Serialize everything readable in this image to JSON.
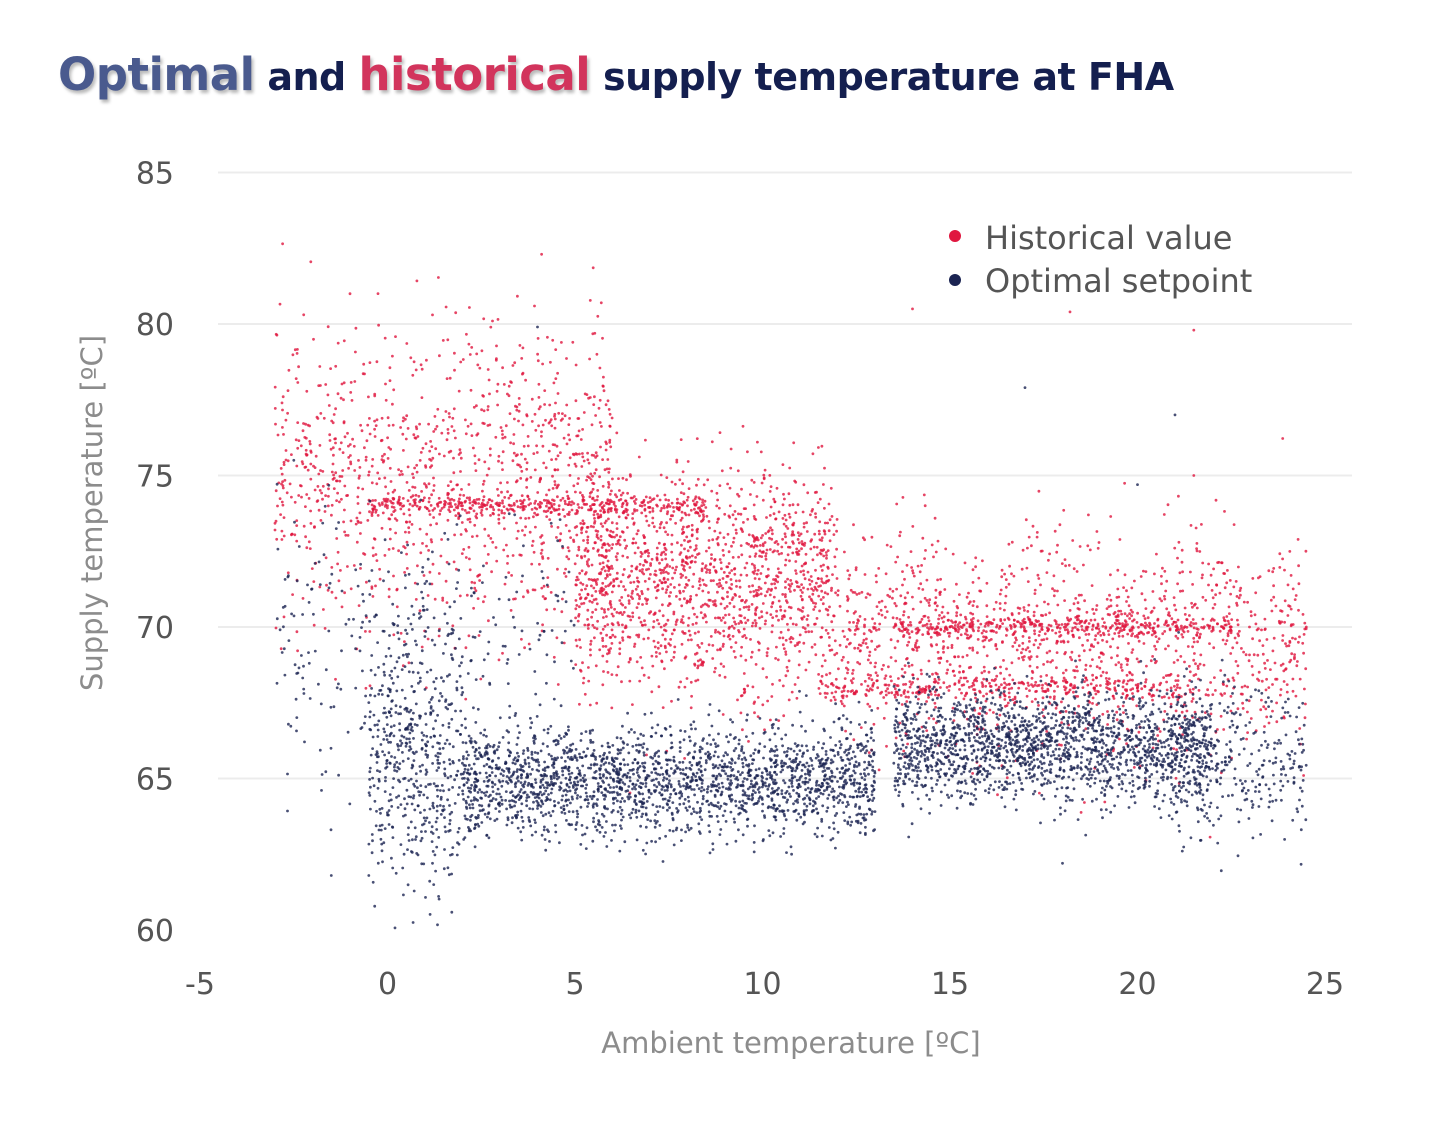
{
  "title": {
    "part1": "Optimal",
    "part2": " and ",
    "part3": "historical",
    "part4": " supply temperature at FHA"
  },
  "colors": {
    "historical": "#e0173f",
    "optimal": "#1b2452",
    "title_optimal": "#4a5a8e",
    "title_historical": "#d2345c",
    "title_text": "#141f4f"
  },
  "chart_data": {
    "type": "scatter",
    "title": "Optimal and historical supply temperature at FHA",
    "xlabel": "Ambient temperature [ºC]",
    "ylabel": "Supply temperature  [ºC]",
    "xlim": [
      -5,
      26
    ],
    "ylim": [
      60,
      85
    ],
    "x_ticks": [
      -5,
      0,
      5,
      10,
      15,
      20,
      25
    ],
    "y_ticks": [
      60,
      65,
      70,
      75,
      80,
      85
    ],
    "grid": true,
    "legend_position": "top-right",
    "series": [
      {
        "name": "Historical value",
        "color": "#e0173f",
        "point_count_approx": 9000,
        "clusters": [
          {
            "x_range": [
              -0.5,
              8.5
            ],
            "y_center": 74.0,
            "y_spread": 0.2,
            "weight": 0.08
          },
          {
            "x_range": [
              13.5,
              22.5
            ],
            "y_center": 70.0,
            "y_spread": 0.2,
            "weight": 0.08
          },
          {
            "x_range": [
              11.5,
              21.5
            ],
            "y_center": 68.0,
            "y_spread": 0.2,
            "weight": 0.06
          },
          {
            "x_range": [
              -3,
              6
            ],
            "y_center": 75.0,
            "y_spread": 2.5,
            "weight": 0.22
          },
          {
            "x_range": [
              5,
              12
            ],
            "y_center": 71.5,
            "y_spread": 1.8,
            "weight": 0.3
          },
          {
            "x_range": [
              12,
              24.5
            ],
            "y_center": 69.5,
            "y_spread": 1.8,
            "weight": 0.26
          }
        ],
        "sample_points": [
          [
            -3.0,
            73.2
          ],
          [
            -1.0,
            81.0
          ],
          [
            1.2,
            80.3
          ],
          [
            2.8,
            80.1
          ],
          [
            5.7,
            80.7
          ],
          [
            0.0,
            74.0
          ],
          [
            2.0,
            74.0
          ],
          [
            8.0,
            74.0
          ],
          [
            15.0,
            70.0
          ],
          [
            22.5,
            70.0
          ],
          [
            24.5,
            70.0
          ],
          [
            12.0,
            68.0
          ],
          [
            20.0,
            68.0
          ],
          [
            23.5,
            68.0
          ],
          [
            14.0,
            80.5
          ],
          [
            18.2,
            80.4
          ],
          [
            21.5,
            79.8
          ],
          [
            21.5,
            75.0
          ],
          [
            10.0,
            72.0
          ],
          [
            6.5,
            71.0
          ]
        ]
      },
      {
        "name": "Optimal setpoint",
        "color": "#1b2452",
        "point_count_approx": 9000,
        "clusters": [
          {
            "x_range": [
              -0.5,
              2
            ],
            "y_center": 66.0,
            "y_spread": 2.5,
            "weight": 0.1
          },
          {
            "x_range": [
              2,
              13
            ],
            "y_center": 64.9,
            "y_spread": 0.9,
            "weight": 0.42
          },
          {
            "x_range": [
              13.5,
              22
            ],
            "y_center": 66.0,
            "y_spread": 0.9,
            "weight": 0.36
          },
          {
            "x_range": [
              -3,
              5
            ],
            "y_center": 69.0,
            "y_spread": 2.5,
            "weight": 0.06
          },
          {
            "x_range": [
              21,
              24.5
            ],
            "y_center": 65.5,
            "y_spread": 1.3,
            "weight": 0.06
          }
        ],
        "sample_points": [
          [
            -1.5,
            61.8
          ],
          [
            -0.5,
            61.8
          ],
          [
            1.2,
            62.2
          ],
          [
            18.0,
            62.2
          ],
          [
            -2.5,
            75.5
          ],
          [
            4.0,
            79.9
          ],
          [
            17.0,
            77.9
          ],
          [
            21.0,
            77.0
          ],
          [
            20.0,
            74.7
          ],
          [
            2.0,
            65.0
          ],
          [
            8.0,
            64.8
          ],
          [
            12.0,
            64.9
          ],
          [
            15.0,
            66.0
          ],
          [
            19.0,
            66.2
          ],
          [
            23.0,
            65.5
          ]
        ]
      }
    ]
  }
}
